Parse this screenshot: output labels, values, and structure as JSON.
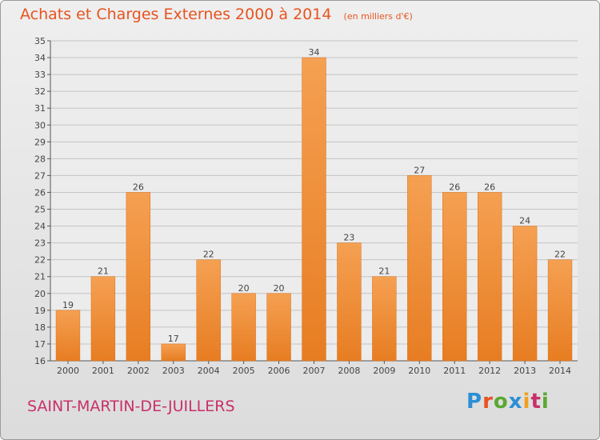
{
  "chart_data": {
    "type": "bar",
    "title": "Achats et Charges Externes 2000 à 2014",
    "subtitle": "(en milliers d'€)",
    "categories": [
      "2000",
      "2001",
      "2002",
      "2003",
      "2004",
      "2005",
      "2006",
      "2007",
      "2008",
      "2009",
      "2010",
      "2011",
      "2012",
      "2013",
      "2014"
    ],
    "values": [
      19,
      21,
      26,
      17,
      22,
      20,
      20,
      34,
      23,
      21,
      27,
      26,
      26,
      24,
      22
    ],
    "ylim": [
      16,
      35
    ],
    "yticks": [
      16,
      17,
      18,
      19,
      20,
      21,
      22,
      23,
      24,
      25,
      26,
      27,
      28,
      29,
      30,
      31,
      32,
      33,
      34,
      35
    ],
    "grid": true,
    "bar_color": "#f0913a"
  },
  "location": "SAINT-MARTIN-DE-JUILLERS",
  "logo": {
    "text": "Proxiti",
    "letters": [
      "P",
      "r",
      "o",
      "x",
      "i",
      "t",
      "i"
    ],
    "colors": [
      "#2b8fd6",
      "#e8531f",
      "#5aa832",
      "#2b8fd6",
      "#f0a020",
      "#c8306a",
      "#5aa832"
    ]
  }
}
